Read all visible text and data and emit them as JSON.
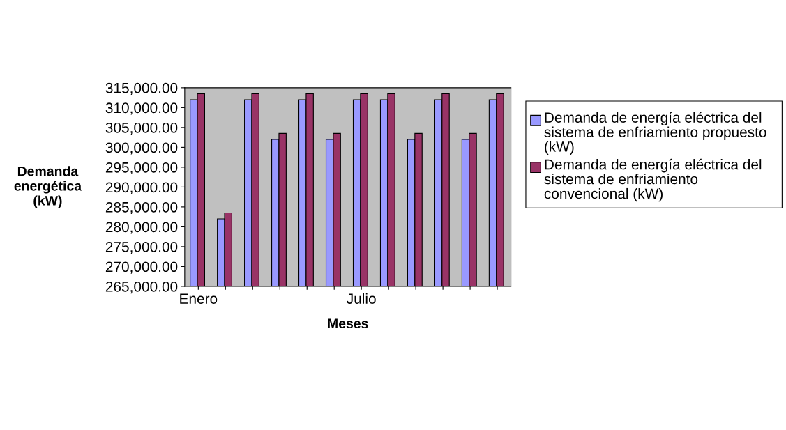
{
  "chart_data": {
    "type": "bar",
    "categories": [
      "Enero",
      null,
      null,
      null,
      null,
      null,
      "Julio",
      null,
      null,
      null,
      null,
      null
    ],
    "xlabel": "Meses",
    "ylabel": "Demanda\nenergética\n(kW)",
    "series": [
      {
        "name": "Demanda de energía eléctrica del sistema de enfriamiento propuesto (kW)",
        "color": "#9999ff",
        "values": [
          312000,
          282000,
          312000,
          302000,
          312000,
          302000,
          312000,
          312000,
          302000,
          312000,
          302000,
          312000
        ]
      },
      {
        "name": "Demanda de energía eléctrica del sistema de enfriamiento convencional (kW)",
        "color": "#993366",
        "values": [
          313500,
          283500,
          313500,
          303500,
          313500,
          303500,
          313500,
          313500,
          303500,
          313500,
          303500,
          313500
        ]
      }
    ],
    "ylim": [
      265000,
      315000
    ],
    "yticks": [
      {
        "value": 265000,
        "label": "265,000.00"
      },
      {
        "value": 270000,
        "label": "270,000.00"
      },
      {
        "value": 275000,
        "label": "275,000.00"
      },
      {
        "value": 280000,
        "label": "280,000.00"
      },
      {
        "value": 285000,
        "label": "285,000.00"
      },
      {
        "value": 290000,
        "label": "290,000.00"
      },
      {
        "value": 295000,
        "label": "295,000.00"
      },
      {
        "value": 300000,
        "label": "300,000.00"
      },
      {
        "value": 305000,
        "label": "305,000.00"
      },
      {
        "value": 310000,
        "label": "310,000.00"
      },
      {
        "value": 315000,
        "label": "315,000.00"
      }
    ],
    "grid": false,
    "legend": "right"
  }
}
